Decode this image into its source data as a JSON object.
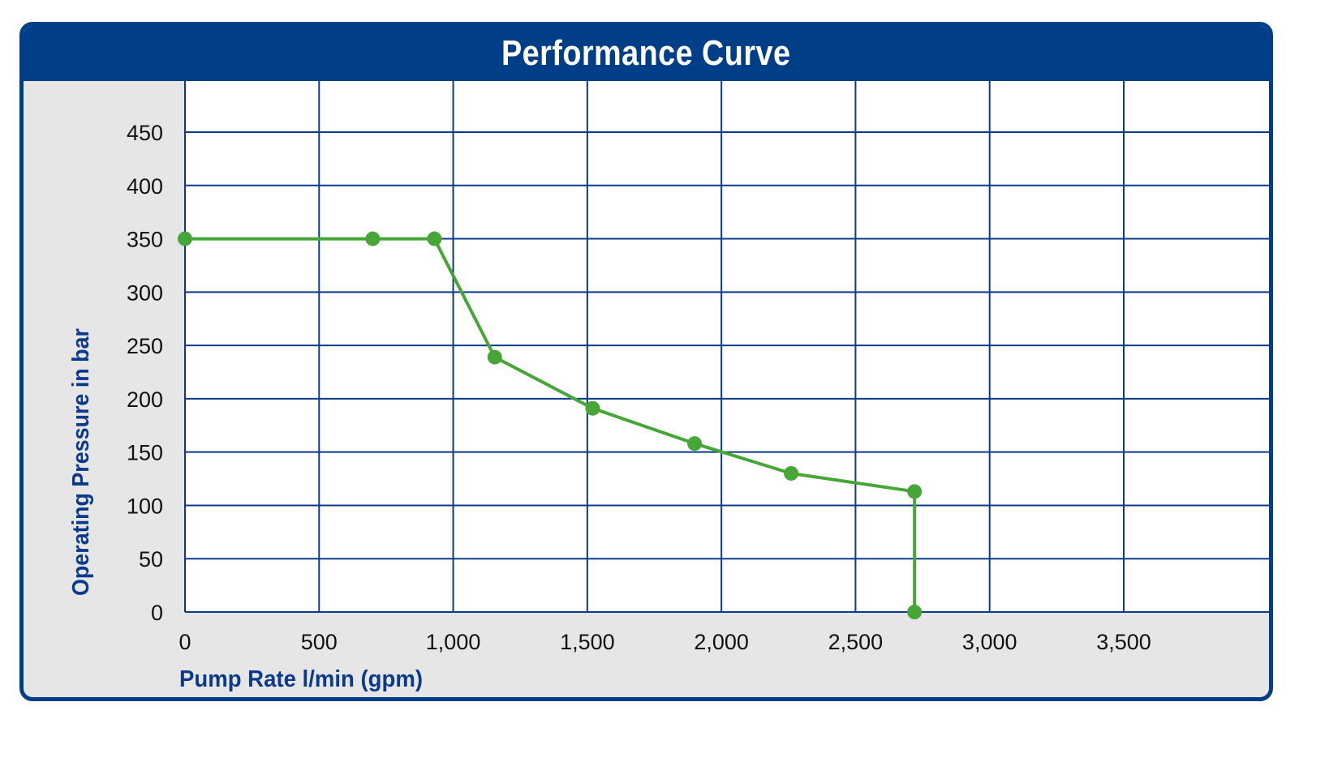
{
  "chart_data": {
    "type": "line",
    "title": "Performance Curve",
    "xlabel": "Pump Rate l/min (gpm)",
    "ylabel": "Operating Pressure in bar",
    "xlim": [
      0,
      4000
    ],
    "ylim": [
      0,
      500
    ],
    "x_ticks": [
      0,
      500,
      1000,
      1500,
      2000,
      2500,
      3000,
      3500
    ],
    "x_tick_labels": [
      "0",
      "500",
      "1,000",
      "1,500",
      "2,000",
      "2,500",
      "3,000",
      "3,500"
    ],
    "y_ticks": [
      0,
      50,
      100,
      150,
      200,
      250,
      300,
      350,
      400,
      450
    ],
    "y_tick_labels": [
      "0",
      "50",
      "100",
      "150",
      "200",
      "250",
      "300",
      "350",
      "400",
      "450"
    ],
    "grid": true,
    "series": [
      {
        "x": [
          0,
          700,
          930,
          1155,
          1520,
          1900,
          2260,
          2720,
          2720
        ],
        "y": [
          350,
          350,
          350,
          239,
          191,
          158,
          130,
          113,
          0
        ]
      }
    ],
    "colors": {
      "line": "#46a637",
      "grid": "#0c3a8a",
      "axis_title": "#0c3a8a",
      "tick_label": "#111111",
      "header": "#003f87",
      "plot_bg": "#ffffff",
      "panel_bg": "#e6e6e6"
    }
  }
}
